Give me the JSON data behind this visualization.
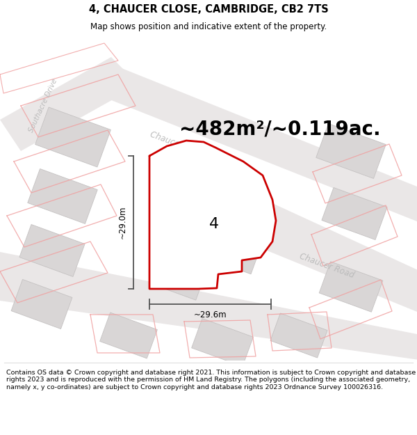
{
  "title": "4, CHAUCER CLOSE, CAMBRIDGE, CB2 7TS",
  "subtitle": "Map shows position and indicative extent of the property.",
  "area_text": "~482m²/~0.119ac.",
  "label_4": "4",
  "dim_height": "~29.0m",
  "dim_width": "~29.6m",
  "footer": "Contains OS data © Crown copyright and database right 2021. This information is subject to Crown copyright and database rights 2023 and is reproduced with the permission of HM Land Registry. The polygons (including the associated geometry, namely x, y co-ordinates) are subject to Crown copyright and database rights 2023 Ordnance Survey 100026316.",
  "bg_color": "#f2f0f0",
  "plot_outline_color": "#cc0000",
  "dim_line_color": "#555555",
  "road_label_color": "#bbbbbb",
  "building_fill": "#d9d6d6",
  "building_edge": "#c5c2c2",
  "plot_outline_color_faint": "#f0aaaa",
  "title_fontsize": 10.5,
  "subtitle_fontsize": 8.5,
  "area_fontsize": 20,
  "label_fontsize": 16,
  "footer_fontsize": 6.8,
  "road_label_fontsize": 8.5
}
